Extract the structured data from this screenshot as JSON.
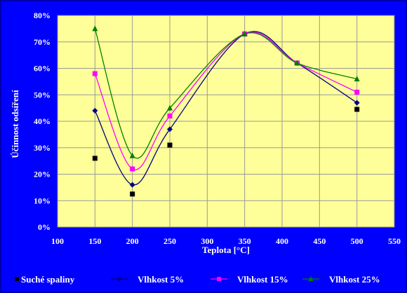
{
  "chart_data": {
    "type": "scatter",
    "xlabel": "Teplota [°C]",
    "ylabel": "Účinnost odsíření",
    "xlim": [
      100,
      550
    ],
    "ylim": [
      0,
      80
    ],
    "x_ticks": [
      "100",
      "150",
      "200",
      "250",
      "300",
      "350",
      "400",
      "450",
      "500",
      "550"
    ],
    "y_ticks": [
      "0%",
      "10%",
      "20%",
      "30%",
      "40%",
      "50%",
      "60%",
      "70%",
      "80%"
    ],
    "grid": true,
    "legend_position": "bottom",
    "plot_background": "#ffff99",
    "series": [
      {
        "name": "Suché spaliny",
        "color": "#000000",
        "marker": "square",
        "line": false,
        "points": [
          [
            150,
            26
          ],
          [
            200,
            12.5
          ],
          [
            250,
            31
          ],
          [
            350,
            73
          ],
          [
            420,
            62
          ],
          [
            500,
            44.5
          ]
        ]
      },
      {
        "name": "Vlhkost 5%",
        "color": "#000080",
        "marker": "diamond",
        "line": true,
        "points": [
          [
            150,
            44
          ],
          [
            200,
            16
          ],
          [
            250,
            37
          ],
          [
            350,
            73
          ],
          [
            420,
            62
          ],
          [
            500,
            47
          ]
        ]
      },
      {
        "name": "Vlhkost 15%",
        "color": "#ff00ff",
        "marker": "square",
        "line": true,
        "points": [
          [
            150,
            58
          ],
          [
            200,
            22
          ],
          [
            250,
            42
          ],
          [
            350,
            73
          ],
          [
            420,
            62
          ],
          [
            500,
            51
          ]
        ]
      },
      {
        "name": "Vlhkost 25%",
        "color": "#008000",
        "marker": "triangle",
        "line": true,
        "points": [
          [
            150,
            75
          ],
          [
            200,
            27
          ],
          [
            250,
            45
          ],
          [
            350,
            73
          ],
          [
            420,
            62
          ],
          [
            500,
            56
          ]
        ]
      }
    ]
  }
}
